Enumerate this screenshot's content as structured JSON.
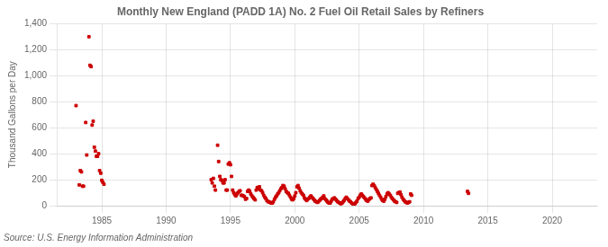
{
  "chart_data": {
    "type": "scatter",
    "title": "Monthly New England (PADD 1A) No. 2 Fuel Oil Retail Sales by Refiners",
    "y_label": "Thousand Gallons per Day",
    "annotations": [
      "Source: U.S. Energy Information Administration"
    ],
    "color": "#CC0000",
    "marker": "square",
    "grid": true,
    "xlim": [
      1981.5,
      2023.5
    ],
    "xticks": [
      1985,
      1990,
      1995,
      2000,
      2005,
      2010,
      2015,
      2020
    ],
    "ylim": [
      0,
      1400
    ],
    "yticks": [
      0,
      200,
      400,
      600,
      800,
      {
        "value": 1000,
        "label": "1,000"
      },
      {
        "value": 1200,
        "label": "1,200"
      },
      {
        "value": 1400,
        "label": "1,400"
      }
    ],
    "x": [
      1983.0,
      1983.25,
      1983.33,
      1983.42,
      1983.5,
      1983.58,
      1983.75,
      1983.83,
      1984.0,
      1984.08,
      1984.17,
      1984.25,
      1984.33,
      1984.42,
      1984.5,
      1984.58,
      1984.67,
      1984.75,
      1984.83,
      1984.92,
      1985.0,
      1985.08,
      1985.17,
      1993.5,
      1993.58,
      1993.67,
      1993.75,
      1993.83,
      1994.0,
      1994.08,
      1994.17,
      1994.25,
      1994.33,
      1994.42,
      1994.5,
      1994.58,
      1994.67,
      1994.75,
      1994.83,
      1994.92,
      1995.0,
      1995.08,
      1995.17,
      1995.25,
      1995.33,
      1995.42,
      1995.5,
      1995.58,
      1995.67,
      1995.75,
      1995.83,
      1995.92,
      1996.0,
      1996.08,
      1996.17,
      1996.25,
      1996.33,
      1996.42,
      1996.5,
      1996.58,
      1996.67,
      1996.75,
      1996.83,
      1996.92,
      1997.0,
      1997.08,
      1997.17,
      1997.25,
      1997.33,
      1997.42,
      1997.5,
      1997.58,
      1997.67,
      1997.75,
      1997.83,
      1997.92,
      1998.0,
      1998.08,
      1998.17,
      1998.25,
      1998.33,
      1998.42,
      1998.5,
      1998.58,
      1998.67,
      1998.75,
      1998.83,
      1998.92,
      1999.0,
      1999.08,
      1999.17,
      1999.25,
      1999.33,
      1999.42,
      1999.5,
      1999.58,
      1999.67,
      1999.75,
      1999.83,
      1999.92,
      2000.0,
      2000.08,
      2000.17,
      2000.25,
      2000.33,
      2000.42,
      2000.5,
      2000.58,
      2000.67,
      2000.75,
      2000.83,
      2000.92,
      2001.0,
      2001.08,
      2001.17,
      2001.25,
      2001.33,
      2001.42,
      2001.5,
      2001.58,
      2001.67,
      2001.75,
      2001.83,
      2001.92,
      2002.0,
      2002.08,
      2002.17,
      2002.25,
      2002.33,
      2002.42,
      2002.5,
      2002.58,
      2002.67,
      2002.75,
      2002.83,
      2002.92,
      2003.0,
      2003.08,
      2003.17,
      2003.25,
      2003.33,
      2003.42,
      2003.5,
      2003.58,
      2003.67,
      2003.75,
      2003.83,
      2003.92,
      2004.0,
      2004.08,
      2004.17,
      2004.25,
      2004.33,
      2004.42,
      2004.5,
      2004.58,
      2004.67,
      2004.75,
      2004.83,
      2004.92,
      2005.0,
      2005.08,
      2005.17,
      2005.25,
      2005.33,
      2005.42,
      2005.5,
      2005.58,
      2005.67,
      2005.75,
      2005.83,
      2005.92,
      2006.0,
      2006.08,
      2006.17,
      2006.25,
      2006.33,
      2006.42,
      2006.5,
      2006.58,
      2006.67,
      2006.75,
      2006.83,
      2006.92,
      2007.0,
      2007.08,
      2007.17,
      2007.25,
      2007.33,
      2007.42,
      2007.5,
      2007.58,
      2007.67,
      2007.75,
      2007.83,
      2007.92,
      2008.0,
      2008.08,
      2008.17,
      2008.25,
      2008.33,
      2008.42,
      2008.5,
      2008.58,
      2008.67,
      2008.75,
      2008.83,
      2008.92,
      2009.0,
      2009.08,
      2013.42,
      2013.5
    ],
    "values": [
      770,
      160,
      270,
      260,
      150,
      150,
      640,
      390,
      1300,
      1080,
      1070,
      620,
      650,
      450,
      420,
      380,
      380,
      400,
      270,
      250,
      195,
      180,
      165,
      200,
      175,
      210,
      150,
      120,
      465,
      340,
      225,
      200,
      195,
      175,
      175,
      200,
      120,
      120,
      320,
      330,
      315,
      225,
      120,
      100,
      85,
      75,
      90,
      100,
      110,
      115,
      80,
      80,
      75,
      70,
      50,
      55,
      110,
      120,
      110,
      90,
      75,
      65,
      55,
      45,
      120,
      140,
      130,
      145,
      120,
      115,
      100,
      80,
      65,
      55,
      40,
      30,
      30,
      25,
      20,
      20,
      30,
      50,
      65,
      75,
      90,
      100,
      115,
      130,
      140,
      155,
      150,
      130,
      110,
      100,
      95,
      80,
      65,
      50,
      45,
      55,
      75,
      100,
      145,
      155,
      135,
      115,
      100,
      90,
      80,
      60,
      50,
      40,
      50,
      55,
      65,
      75,
      65,
      55,
      45,
      35,
      30,
      25,
      30,
      40,
      50,
      55,
      65,
      75,
      55,
      45,
      35,
      25,
      20,
      20,
      35,
      50,
      55,
      60,
      50,
      40,
      30,
      25,
      20,
      15,
      20,
      30,
      40,
      55,
      65,
      55,
      45,
      35,
      30,
      20,
      15,
      10,
      15,
      25,
      35,
      55,
      65,
      80,
      90,
      80,
      70,
      60,
      50,
      40,
      35,
      45,
      55,
      60,
      155,
      165,
      155,
      140,
      125,
      110,
      95,
      80,
      65,
      50,
      40,
      35,
      50,
      70,
      90,
      100,
      90,
      80,
      65,
      55,
      45,
      35,
      30,
      25,
      95,
      100,
      105,
      85,
      65,
      50,
      40,
      30,
      25,
      20,
      25,
      30,
      90,
      80,
      110,
      95
    ]
  }
}
